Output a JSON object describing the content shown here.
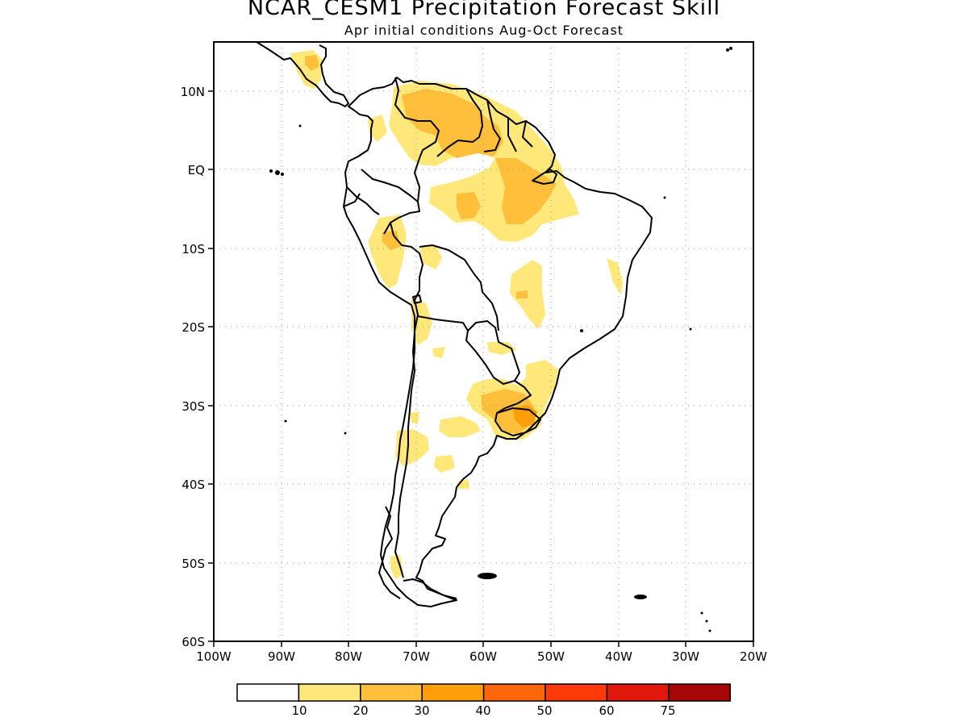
{
  "header": {
    "title": "NCAR_CESM1 Precipitation Forecast Skill",
    "subtitle": "Apr initial conditions  Aug-Oct Forecast"
  },
  "map": {
    "lat_labels": [
      "10N",
      "EQ",
      "10S",
      "20S",
      "30S",
      "40S",
      "50S",
      "60S"
    ],
    "lon_labels": [
      "100W",
      "90W",
      "80W",
      "70W",
      "60W",
      "50W",
      "40W",
      "30W",
      "20W"
    ],
    "grid": "dotted"
  },
  "legend": {
    "labels": [
      "10",
      "20",
      "30",
      "40",
      "50",
      "60",
      "75"
    ],
    "colors": [
      "#ffffff",
      "#ffe77a",
      "#ffbf3a",
      "#ff9e0b",
      "#ff650a",
      "#ff3a0a",
      "#e0170a",
      "#a50707"
    ]
  }
}
